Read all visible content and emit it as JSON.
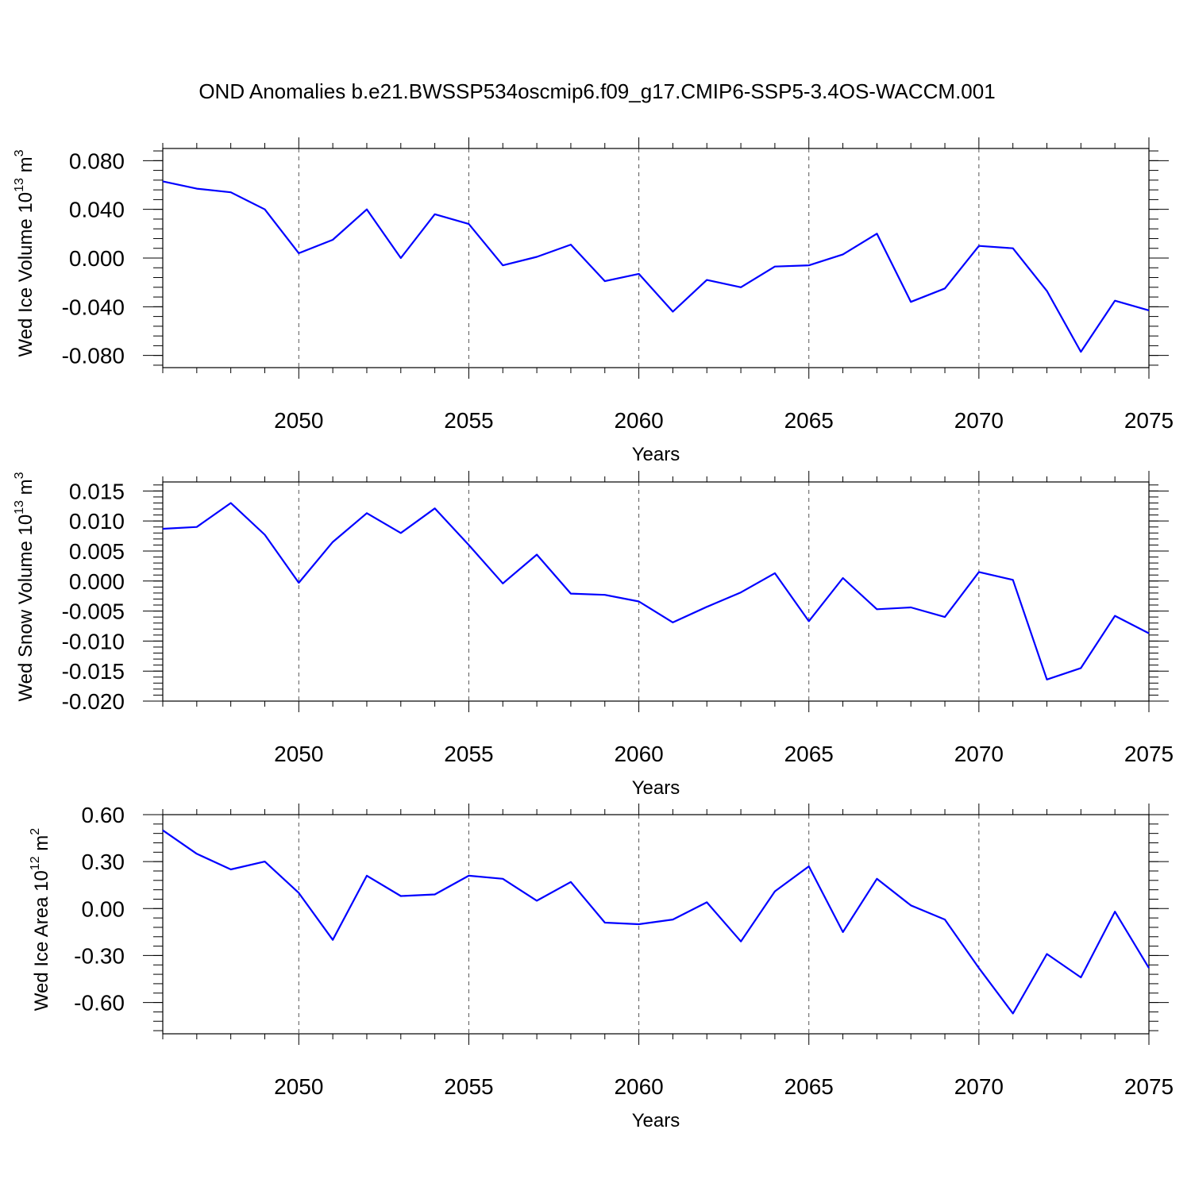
{
  "title": "OND Anomalies b.e21.BWSSP534oscmip6.f09_g17.CMIP6-SSP5-3.4OS-WACCM.001",
  "colors": {
    "line": "#0000ff",
    "grid": "#555555",
    "axes": "#000000"
  },
  "chart_data": [
    {
      "type": "line",
      "ylabel_main": "Wed Ice Volume 10",
      "ylabel_exp": "13",
      "ylabel_unit": " m",
      "ylabel_unit_exp": "3",
      "xlabel": "Years",
      "xlim": [
        2046,
        2075
      ],
      "ylim": [
        -0.09,
        0.09
      ],
      "yticks": [
        -0.08,
        -0.04,
        0.0,
        0.04,
        0.08
      ],
      "ytick_labels": [
        "-0.080",
        "-0.040",
        "0.000",
        "0.040",
        "0.080"
      ],
      "yminor_step": 0.008,
      "xticks": [
        2050,
        2055,
        2060,
        2065,
        2070,
        2075
      ],
      "xtick_labels": [
        "2050",
        "2055",
        "2060",
        "2065",
        "2070",
        "2075"
      ],
      "grid": "vertical dashed at major x ticks",
      "series": [
        {
          "x": [
            2046,
            2047,
            2048,
            2049,
            2050,
            2051,
            2052,
            2053,
            2054,
            2055,
            2056,
            2057,
            2058,
            2059,
            2060,
            2061,
            2062,
            2063,
            2064,
            2065,
            2066,
            2067,
            2068,
            2069,
            2070,
            2071,
            2072,
            2073,
            2074,
            2075
          ],
          "values": [
            0.063,
            0.057,
            0.054,
            0.04,
            0.004,
            0.015,
            0.04,
            0.0,
            0.036,
            0.028,
            -0.006,
            0.001,
            0.011,
            -0.019,
            -0.013,
            -0.044,
            -0.018,
            -0.024,
            -0.007,
            -0.006,
            0.003,
            0.02,
            -0.036,
            -0.025,
            0.01,
            0.008,
            -0.027,
            -0.077,
            -0.035,
            -0.043
          ]
        }
      ]
    },
    {
      "type": "line",
      "ylabel_main": "Wed Snow Volume 10",
      "ylabel_exp": "13",
      "ylabel_unit": " m",
      "ylabel_unit_exp": "3",
      "xlabel": "Years",
      "xlim": [
        2046,
        2075
      ],
      "ylim": [
        -0.02,
        0.0165
      ],
      "yticks": [
        -0.02,
        -0.015,
        -0.01,
        -0.005,
        0.0,
        0.005,
        0.01,
        0.015
      ],
      "ytick_labels": [
        "-0.020",
        "-0.015",
        "-0.010",
        "-0.005",
        "0.000",
        "0.005",
        "0.010",
        "0.015"
      ],
      "yminor_step": 0.001,
      "xticks": [
        2050,
        2055,
        2060,
        2065,
        2070,
        2075
      ],
      "xtick_labels": [
        "2050",
        "2055",
        "2060",
        "2065",
        "2070",
        "2075"
      ],
      "grid": "vertical dashed at major x ticks",
      "series": [
        {
          "x": [
            2046,
            2047,
            2048,
            2049,
            2050,
            2051,
            2052,
            2053,
            2054,
            2055,
            2056,
            2057,
            2058,
            2059,
            2060,
            2061,
            2062,
            2063,
            2064,
            2065,
            2066,
            2067,
            2068,
            2069,
            2070,
            2071,
            2072,
            2073,
            2074,
            2075
          ],
          "values": [
            0.0087,
            0.009,
            0.013,
            0.0077,
            -0.0003,
            0.0065,
            0.0113,
            0.008,
            0.0121,
            0.006,
            -0.0004,
            0.0044,
            -0.0021,
            -0.0023,
            -0.0034,
            -0.0069,
            -0.0043,
            -0.0019,
            0.0013,
            -0.0067,
            0.0005,
            -0.0047,
            -0.0044,
            -0.006,
            0.0015,
            0.0002,
            -0.0164,
            -0.0145,
            -0.0058,
            -0.0087
          ]
        }
      ]
    },
    {
      "type": "line",
      "ylabel_main": "Wed Ice Area 10",
      "ylabel_exp": "12",
      "ylabel_unit": " m",
      "ylabel_unit_exp": "2",
      "xlabel": "Years",
      "xlim": [
        2046,
        2075
      ],
      "ylim": [
        -0.8,
        0.6
      ],
      "yticks": [
        -0.6,
        -0.3,
        0.0,
        0.3,
        0.6
      ],
      "ytick_labels": [
        "-0.60",
        "-0.30",
        "0.00",
        "0.30",
        "0.60"
      ],
      "yminor_step": 0.06,
      "xticks": [
        2050,
        2055,
        2060,
        2065,
        2070,
        2075
      ],
      "xtick_labels": [
        "2050",
        "2055",
        "2060",
        "2065",
        "2070",
        "2075"
      ],
      "grid": "vertical dashed at major x ticks",
      "series": [
        {
          "x": [
            2046,
            2047,
            2048,
            2049,
            2050,
            2051,
            2052,
            2053,
            2054,
            2055,
            2056,
            2057,
            2058,
            2059,
            2060,
            2061,
            2062,
            2063,
            2064,
            2065,
            2066,
            2067,
            2068,
            2069,
            2070,
            2071,
            2072,
            2073,
            2074,
            2075
          ],
          "values": [
            0.5,
            0.35,
            0.25,
            0.3,
            0.1,
            -0.2,
            0.21,
            0.08,
            0.09,
            0.21,
            0.19,
            0.05,
            0.17,
            -0.09,
            -0.1,
            -0.07,
            0.04,
            -0.21,
            0.11,
            0.27,
            -0.15,
            0.19,
            0.02,
            -0.07,
            -0.38,
            -0.67,
            -0.29,
            -0.44,
            -0.02,
            -0.38
          ]
        }
      ]
    }
  ]
}
